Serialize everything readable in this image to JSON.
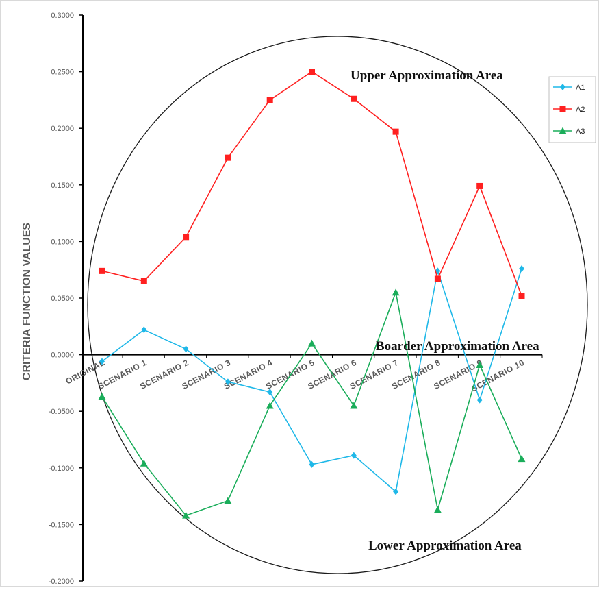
{
  "chart_data": {
    "type": "line",
    "ylabel": "CRITERIA FUNCTION VALUES",
    "xlabel": "",
    "ylim": [
      -0.2,
      0.3
    ],
    "yticks": [
      "0.3000",
      "0.2500",
      "0.2000",
      "0.1500",
      "0.1000",
      "0.0500",
      "0.0000",
      "-0.0500",
      "-0.1000",
      "-0.1500",
      "-0.2000"
    ],
    "categories": [
      "ORIGINAL",
      "SCENARIO 1",
      "SCENARIO 2",
      "SCENARIO 3",
      "SCENARIO 4",
      "SCENARIO 5",
      "SCENARIO 6",
      "SCENARIO 7",
      "SCENARIO 8",
      "SCENARIO 9",
      "SCENARIO 10"
    ],
    "series": [
      {
        "name": "A1",
        "color": "#1fb8e8",
        "marker": "diamond",
        "values": [
          -0.006,
          0.022,
          0.005,
          -0.024,
          -0.033,
          -0.097,
          -0.089,
          -0.121,
          0.074,
          -0.04,
          0.076
        ]
      },
      {
        "name": "A2",
        "color": "#ff2020",
        "marker": "square",
        "values": [
          0.074,
          0.065,
          0.104,
          0.174,
          0.225,
          0.25,
          0.226,
          0.197,
          0.067,
          0.149,
          0.052
        ]
      },
      {
        "name": "A3",
        "color": "#1aad5a",
        "marker": "triangle",
        "values": [
          -0.037,
          -0.096,
          -0.142,
          -0.129,
          -0.045,
          0.01,
          -0.045,
          0.055,
          -0.137,
          -0.009,
          -0.092
        ]
      }
    ],
    "legend_position": "top-right",
    "grid": false,
    "annotations": [
      "Upper Approximation Area",
      "Boarder Approximation Area",
      "Lower Approximation Area"
    ]
  }
}
